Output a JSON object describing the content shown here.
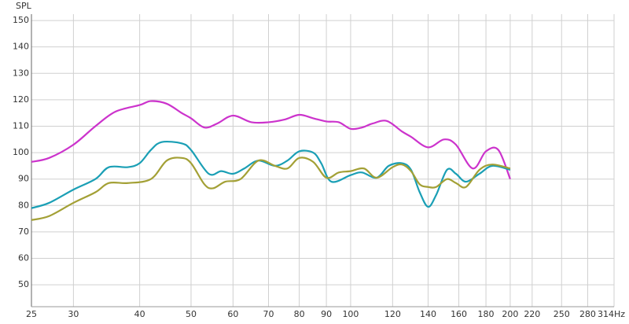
{
  "chart_data": {
    "type": "line",
    "ylabel": "SPL",
    "xlabel": "Hz",
    "xscale": "log",
    "grid": true,
    "xlim": [
      25,
      314
    ],
    "ylim": [
      41.7,
      152.4
    ],
    "xticks": [
      25,
      30,
      40,
      50,
      60,
      70,
      80,
      90,
      100,
      120,
      140,
      160,
      180,
      200,
      220,
      250,
      280,
      314
    ],
    "yticks": [
      50,
      60,
      70,
      80,
      90,
      100,
      110,
      120,
      130,
      140,
      150
    ],
    "series": [
      {
        "color": "#cc33cc",
        "x": [
          25,
          27,
          30,
          33,
          36,
          40,
          42,
          45,
          48,
          50,
          53,
          56,
          60,
          65,
          70,
          75,
          80,
          85,
          90,
          95,
          100,
          105,
          110,
          117,
          125,
          130,
          140,
          150,
          158,
          170,
          180,
          190,
          200
        ],
        "values": [
          96.5,
          98,
          103,
          110,
          115.5,
          118,
          119.5,
          118.5,
          115,
          113,
          109.5,
          111,
          114,
          111.5,
          111.5,
          112.5,
          114.3,
          113,
          111.8,
          111.5,
          109,
          109.5,
          111,
          112,
          108,
          106,
          102,
          105,
          103,
          94,
          100.5,
          101,
          90
        ]
      },
      {
        "color": "#1a9fb5",
        "x": [
          25,
          27,
          30,
          33,
          35,
          38,
          40,
          42,
          44,
          48,
          50,
          54,
          57,
          60,
          63,
          67,
          72,
          76,
          80,
          85,
          88,
          92,
          100,
          105,
          112,
          118,
          125,
          130,
          135,
          140,
          145,
          152,
          158,
          165,
          175,
          185,
          200
        ],
        "values": [
          79,
          81,
          86,
          90,
          94.5,
          94.5,
          96,
          101,
          104,
          103.5,
          101,
          92,
          93,
          92,
          94,
          97,
          95,
          97,
          100.5,
          100,
          96,
          89,
          91.5,
          92.5,
          90.5,
          95,
          96,
          93.5,
          85,
          79.5,
          84,
          93.5,
          92,
          89,
          92,
          95,
          93.5
        ]
      },
      {
        "color": "#a3a035",
        "x": [
          25,
          27,
          30,
          33,
          35,
          38,
          42,
          45,
          48,
          50,
          53,
          55,
          58,
          62,
          67,
          72,
          76,
          80,
          85,
          90,
          95,
          100,
          106,
          112,
          120,
          125,
          130,
          135,
          140,
          145,
          152,
          158,
          165,
          175,
          185,
          200
        ],
        "values": [
          74.5,
          76,
          81,
          85,
          88.5,
          88.5,
          90,
          97,
          98,
          96,
          88,
          86.5,
          89,
          90,
          97,
          95,
          94,
          98,
          96.5,
          90.5,
          92.5,
          93,
          94,
          90.5,
          94.5,
          95.5,
          93,
          88,
          87,
          87,
          90,
          88.5,
          87,
          93.5,
          95.5,
          94
        ]
      }
    ]
  }
}
